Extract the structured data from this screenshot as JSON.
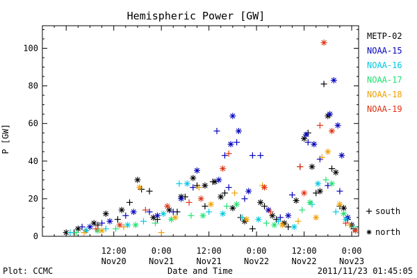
{
  "footer": {
    "left": "Plot: CCMC",
    "right": "2011/11/23 01:45:05"
  },
  "chart_data": {
    "type": "scatter",
    "title": "Hemispheric Power [GW]",
    "xlabel": "Date and Time",
    "ylabel": "P [GW]",
    "xlim": [
      "2011-11-19T18:00",
      "2011-11-23T01:45"
    ],
    "ylim": [
      0,
      112
    ],
    "yticks": [
      0,
      20,
      40,
      60,
      80,
      100
    ],
    "xticks": [
      {
        "time": "2011-11-20T12:00",
        "label1": "12:00",
        "label2": "Nov20"
      },
      {
        "time": "2011-11-21T00:00",
        "label1": "0:00",
        "label2": "Nov21"
      },
      {
        "time": "2011-11-21T12:00",
        "label1": "12:00",
        "label2": "Nov21"
      },
      {
        "time": "2011-11-22T00:00",
        "label1": "0:00",
        "label2": "Nov22"
      },
      {
        "time": "2011-11-22T12:00",
        "label1": "12:00",
        "label2": "Nov22"
      },
      {
        "time": "2011-11-23T00:00",
        "label1": "0:00",
        "label2": "Nov23"
      }
    ],
    "grid": false,
    "legend_position": "right",
    "markers": {
      "south": "+",
      "north": "*"
    },
    "marker_legend": [
      {
        "symbol": "+",
        "label": "south"
      },
      {
        "symbol": "*",
        "label": "north"
      }
    ],
    "series": [
      {
        "name": "METP-02",
        "color": "#000000",
        "south": [
          [
            "2011-11-20T02:00",
            2
          ],
          [
            "2011-11-20T05:00",
            3
          ],
          [
            "2011-11-20T08:00",
            6
          ],
          [
            "2011-11-20T13:00",
            9
          ],
          [
            "2011-11-20T16:00",
            18
          ],
          [
            "2011-11-20T19:00",
            25
          ],
          [
            "2011-11-20T21:00",
            24
          ],
          [
            "2011-11-20T23:00",
            9
          ],
          [
            "2011-11-21T04:00",
            13
          ],
          [
            "2011-11-21T06:00",
            21
          ],
          [
            "2011-11-21T09:00",
            27
          ],
          [
            "2011-11-21T11:00",
            16
          ],
          [
            "2011-11-21T13:00",
            29
          ],
          [
            "2011-11-21T16:00",
            23
          ],
          [
            "2011-11-21T20:00",
            10
          ],
          [
            "2011-11-21T23:00",
            4
          ],
          [
            "2011-11-22T02:00",
            16
          ],
          [
            "2011-11-22T05:00",
            9
          ],
          [
            "2011-11-22T08:00",
            5
          ],
          [
            "2011-11-22T11:00",
            37
          ],
          [
            "2011-11-22T13:00",
            55
          ],
          [
            "2011-11-22T15:00",
            23
          ],
          [
            "2011-11-22T17:00",
            81
          ],
          [
            "2011-11-22T19:00",
            36
          ],
          [
            "2011-11-22T21:00",
            16
          ],
          [
            "2011-11-22T23:00",
            9
          ],
          [
            "2011-11-23T00:30",
            4
          ]
        ],
        "north": [
          [
            "2011-11-20T00:00",
            2
          ],
          [
            "2011-11-20T03:00",
            4
          ],
          [
            "2011-11-20T07:00",
            7
          ],
          [
            "2011-11-20T10:00",
            12
          ],
          [
            "2011-11-20T14:00",
            14
          ],
          [
            "2011-11-20T18:00",
            30
          ],
          [
            "2011-11-20T22:00",
            10
          ],
          [
            "2011-11-21T02:00",
            14
          ],
          [
            "2011-11-21T05:00",
            21
          ],
          [
            "2011-11-21T08:00",
            31
          ],
          [
            "2011-11-21T11:00",
            27
          ],
          [
            "2011-11-21T13:30",
            29
          ],
          [
            "2011-11-21T15:00",
            21
          ],
          [
            "2011-11-21T18:00",
            15
          ],
          [
            "2011-11-21T21:00",
            8
          ],
          [
            "2011-11-22T01:00",
            18
          ],
          [
            "2011-11-22T04:00",
            11
          ],
          [
            "2011-11-22T07:00",
            7
          ],
          [
            "2011-11-22T10:00",
            19
          ],
          [
            "2011-11-22T12:00",
            52
          ],
          [
            "2011-11-22T14:00",
            37
          ],
          [
            "2011-11-22T16:00",
            24
          ],
          [
            "2011-11-22T18:00",
            64
          ],
          [
            "2011-11-22T20:00",
            34
          ],
          [
            "2011-11-22T22:00",
            15
          ],
          [
            "2011-11-23T00:00",
            6
          ]
        ]
      },
      {
        "name": "NOAA-15",
        "color": "#0000bb",
        "south": [
          [
            "2011-11-20T04:00",
            5
          ],
          [
            "2011-11-20T09:00",
            7
          ],
          [
            "2011-11-20T15:00",
            11
          ],
          [
            "2011-11-20T21:00",
            13
          ],
          [
            "2011-11-21T03:00",
            13
          ],
          [
            "2011-11-21T08:00",
            26
          ],
          [
            "2011-11-21T14:00",
            56
          ],
          [
            "2011-11-21T16:00",
            43
          ],
          [
            "2011-11-21T17:00",
            26
          ],
          [
            "2011-11-21T19:00",
            50
          ],
          [
            "2011-11-21T21:00",
            20
          ],
          [
            "2011-11-21T23:00",
            43
          ],
          [
            "2011-11-22T01:00",
            43
          ],
          [
            "2011-11-22T06:00",
            10
          ],
          [
            "2011-11-22T09:00",
            22
          ],
          [
            "2011-11-22T13:00",
            50
          ],
          [
            "2011-11-22T16:00",
            41
          ],
          [
            "2011-11-22T18:00",
            27
          ],
          [
            "2011-11-22T21:00",
            24
          ],
          [
            "2011-11-23T00:00",
            6
          ]
        ],
        "north": [
          [
            "2011-11-20T06:00",
            5
          ],
          [
            "2011-11-20T11:00",
            8
          ],
          [
            "2011-11-20T17:00",
            13
          ],
          [
            "2011-11-20T23:00",
            11
          ],
          [
            "2011-11-21T05:00",
            20
          ],
          [
            "2011-11-21T09:00",
            35
          ],
          [
            "2011-11-21T14:30",
            30
          ],
          [
            "2011-11-21T17:30",
            49
          ],
          [
            "2011-11-21T18:00",
            64
          ],
          [
            "2011-11-21T19:30",
            56
          ],
          [
            "2011-11-21T22:00",
            24
          ],
          [
            "2011-11-22T03:00",
            14
          ],
          [
            "2011-11-22T08:00",
            11
          ],
          [
            "2011-11-22T12:30",
            54
          ],
          [
            "2011-11-22T14:30",
            49
          ],
          [
            "2011-11-22T18:30",
            65
          ],
          [
            "2011-11-22T19:30",
            83
          ],
          [
            "2011-11-22T20:30",
            59
          ],
          [
            "2011-11-22T21:30",
            43
          ],
          [
            "2011-11-22T23:00",
            10
          ]
        ]
      },
      {
        "name": "NOAA-16",
        "color": "#00c8e0",
        "south": [
          [
            "2011-11-20T01:00",
            2
          ],
          [
            "2011-11-20T10:00",
            4
          ],
          [
            "2011-11-20T19:30",
            8
          ],
          [
            "2011-11-21T04:30",
            28
          ],
          [
            "2011-11-21T12:00",
            13
          ],
          [
            "2011-11-21T20:30",
            10
          ],
          [
            "2011-11-22T05:30",
            8
          ],
          [
            "2011-11-22T14:00",
            17
          ],
          [
            "2011-11-22T20:00",
            13
          ]
        ],
        "north": [
          [
            "2011-11-20T05:00",
            3
          ],
          [
            "2011-11-20T15:30",
            6
          ],
          [
            "2011-11-21T00:30",
            12
          ],
          [
            "2011-11-21T06:30",
            28
          ],
          [
            "2011-11-21T15:30",
            12
          ],
          [
            "2011-11-22T00:30",
            9
          ],
          [
            "2011-11-22T09:30",
            5
          ],
          [
            "2011-11-22T15:30",
            28
          ],
          [
            "2011-11-22T22:30",
            9
          ]
        ]
      },
      {
        "name": "NOAA-17",
        "color": "#20e070",
        "south": [
          [
            "2011-11-20T02:30",
            2
          ],
          [
            "2011-11-20T12:30",
            4
          ],
          [
            "2011-11-20T22:30",
            7
          ],
          [
            "2011-11-21T07:30",
            11
          ],
          [
            "2011-11-21T16:30",
            16
          ],
          [
            "2011-11-22T02:30",
            7
          ],
          [
            "2011-11-22T11:30",
            14
          ],
          [
            "2011-11-22T17:30",
            30
          ],
          [
            "2011-11-23T00:30",
            5
          ]
        ],
        "north": [
          [
            "2011-11-20T08:00",
            3
          ],
          [
            "2011-11-20T17:30",
            6
          ],
          [
            "2011-11-21T02:30",
            9
          ],
          [
            "2011-11-21T10:30",
            11
          ],
          [
            "2011-11-21T19:00",
            17
          ],
          [
            "2011-11-22T04:30",
            6
          ],
          [
            "2011-11-22T13:30",
            18
          ],
          [
            "2011-11-22T19:00",
            28
          ],
          [
            "2011-11-22T22:00",
            12
          ]
        ]
      },
      {
        "name": "NOAA-18",
        "color": "#f0a000",
        "south": [
          [
            "2011-11-20T04:30",
            2
          ],
          [
            "2011-11-20T14:30",
            5
          ],
          [
            "2011-11-21T00:00",
            2
          ],
          [
            "2011-11-21T09:30",
            26
          ],
          [
            "2011-11-21T18:30",
            23
          ],
          [
            "2011-11-22T01:30",
            27
          ],
          [
            "2011-11-22T10:30",
            8
          ],
          [
            "2011-11-22T16:30",
            42
          ],
          [
            "2011-11-22T23:30",
            6
          ]
        ],
        "north": [
          [
            "2011-11-20T09:00",
            3
          ],
          [
            "2011-11-20T18:30",
            26
          ],
          [
            "2011-11-21T03:30",
            10
          ],
          [
            "2011-11-21T12:30",
            17
          ],
          [
            "2011-11-21T21:30",
            9
          ],
          [
            "2011-11-22T06:30",
            6
          ],
          [
            "2011-11-22T15:00",
            10
          ],
          [
            "2011-11-22T18:00",
            45
          ],
          [
            "2011-11-22T21:00",
            17
          ]
        ]
      },
      {
        "name": "NOAA-19",
        "color": "#e03010",
        "south": [
          [
            "2011-11-20T07:30",
            4
          ],
          [
            "2011-11-20T20:00",
            14
          ],
          [
            "2011-11-21T07:00",
            18
          ],
          [
            "2011-11-21T17:00",
            44
          ],
          [
            "2011-11-22T03:30",
            13
          ],
          [
            "2011-11-22T11:00",
            37
          ],
          [
            "2011-11-22T16:00",
            59
          ],
          [
            "2011-11-22T22:30",
            7
          ]
        ],
        "north": [
          [
            "2011-11-20T13:30",
            6
          ],
          [
            "2011-11-21T01:30",
            16
          ],
          [
            "2011-11-21T10:00",
            20
          ],
          [
            "2011-11-21T15:30",
            36
          ],
          [
            "2011-11-22T02:00",
            26
          ],
          [
            "2011-11-22T12:00",
            23
          ],
          [
            "2011-11-22T17:00",
            103
          ],
          [
            "2011-11-22T19:00",
            56
          ],
          [
            "2011-11-23T01:00",
            3
          ]
        ]
      }
    ]
  }
}
